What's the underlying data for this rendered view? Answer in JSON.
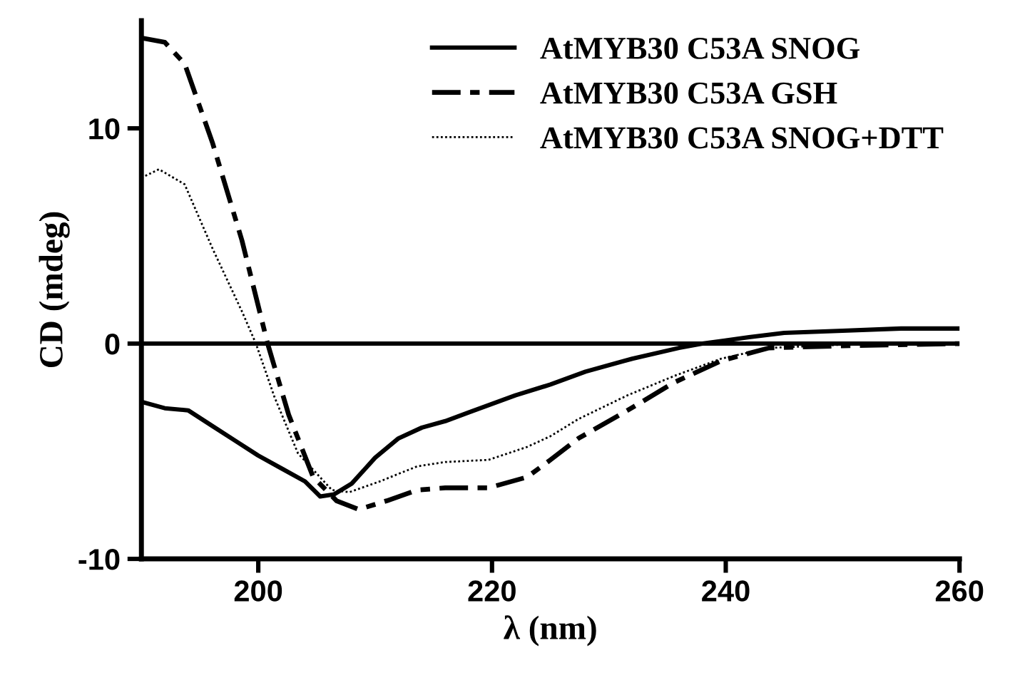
{
  "chart_data": {
    "type": "line",
    "xlabel": "λ (nm)",
    "ylabel": "CD (mdeg)",
    "xlim": [
      190,
      260
    ],
    "ylim": [
      -10,
      15
    ],
    "xticks": [
      200,
      220,
      240,
      260
    ],
    "yticks": [
      -10,
      0,
      10
    ],
    "grid": false,
    "legend": "top right",
    "marker": "none",
    "ref_lines": [
      {
        "axis": "y",
        "value": 0,
        "color": "#000000",
        "line_style": "solid"
      }
    ],
    "series": [
      {
        "name": "AtMYB30 C53A SNOG",
        "color": "#000000",
        "line_style": "solid",
        "x": [
          190,
          192,
          194,
          196,
          198,
          200,
          202,
          204,
          205.3,
          206.5,
          208,
          210,
          212,
          214,
          216,
          218,
          220,
          222,
          225,
          228,
          232,
          236,
          238,
          242,
          245,
          250,
          255,
          260
        ],
        "values": [
          -2.7,
          -3.0,
          -3.1,
          -3.8,
          -4.5,
          -5.2,
          -5.8,
          -6.4,
          -7.1,
          -7.0,
          -6.5,
          -5.3,
          -4.4,
          -3.9,
          -3.6,
          -3.2,
          -2.8,
          -2.4,
          -1.9,
          -1.3,
          -0.7,
          -0.2,
          0.0,
          0.3,
          0.5,
          0.6,
          0.7,
          0.7
        ]
      },
      {
        "name": "AtMYB30 C53A GSH",
        "color": "#000000",
        "line_style": "dashed",
        "x": [
          190,
          192,
          193.7,
          196.1,
          198.6,
          200.8,
          202.6,
          204.7,
          206.7,
          208.6,
          211,
          213.6,
          216,
          219.7,
          223,
          225,
          227.4,
          231.6,
          235.6,
          239.6,
          243.7,
          250,
          260
        ],
        "values": [
          14.2,
          14.0,
          13.0,
          9.3,
          4.8,
          0.0,
          -3.3,
          -6.2,
          -7.3,
          -7.7,
          -7.3,
          -6.8,
          -6.7,
          -6.7,
          -6.2,
          -5.4,
          -4.4,
          -3.1,
          -1.8,
          -0.8,
          -0.2,
          -0.1,
          0.0
        ]
      },
      {
        "name": "AtMYB30 C53A SNOG+DTT",
        "color": "#000000",
        "line_style": "dotted",
        "x": [
          190,
          191.5,
          193.7,
          196.1,
          198.6,
          199.8,
          201.4,
          203.4,
          206.3,
          207.8,
          210.4,
          213.6,
          216,
          219.7,
          223,
          225,
          227.4,
          231.6,
          235.6,
          239.6,
          243.7,
          250,
          260
        ],
        "values": [
          7.7,
          8.1,
          7.4,
          4.4,
          1.5,
          0.0,
          -2.5,
          -5.1,
          -6.8,
          -6.9,
          -6.4,
          -5.7,
          -5.5,
          -5.4,
          -4.8,
          -4.3,
          -3.5,
          -2.4,
          -1.5,
          -0.7,
          -0.2,
          -0.05,
          0.0
        ]
      }
    ]
  }
}
